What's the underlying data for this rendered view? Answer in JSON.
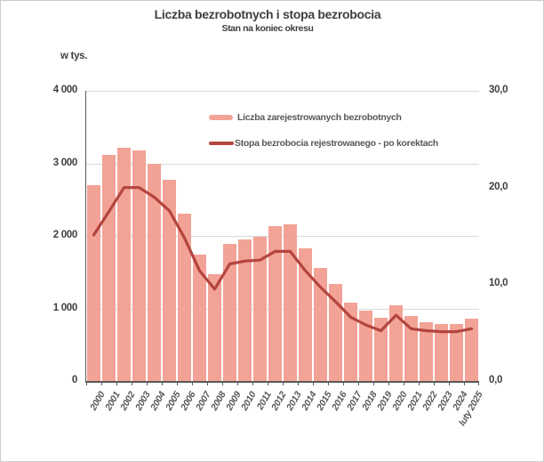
{
  "colors": {
    "bar_fill": "#F3A296",
    "line": "#B3453E",
    "grid": "#D9D9D9",
    "axis": "#5A5A5A",
    "text": "#404040",
    "muted_text": "#595959",
    "frame": "#C9CCCE"
  },
  "chart_data": {
    "type": "combo-bar-line",
    "title": "Liczba bezrobotnych i stopa bezrobocia",
    "subtitle": "Stan na koniec okresu",
    "legend_position": "inside-top-center",
    "grid": true,
    "categories": [
      "2000",
      "2001",
      "2002",
      "2003",
      "2004",
      "2005",
      "2006",
      "2007",
      "2008",
      "2009",
      "2010",
      "2011",
      "2012",
      "2013",
      "2014",
      "2015",
      "2016",
      "2017",
      "2018",
      "2019",
      "2020",
      "2021",
      "2022",
      "2023",
      "2024",
      "luty 2025"
    ],
    "series": [
      {
        "name": "Liczba zarejestrowanych bezrobotnych",
        "type": "bar",
        "axis": "left",
        "unit": "tys.",
        "color": "#F3A296",
        "values": [
          2703,
          3115,
          3217,
          3176,
          3000,
          2773,
          2309,
          1747,
          1474,
          1893,
          1955,
          1983,
          2137,
          2158,
          1825,
          1563,
          1335,
          1082,
          969,
          866,
          1046,
          895,
          812,
          788,
          787,
          854
        ]
      },
      {
        "name": "Stopa bezrobocia rejestrowanego - po korektach",
        "type": "line",
        "axis": "right",
        "unit": "%",
        "color": "#B3453E",
        "values": [
          15.1,
          17.5,
          20.0,
          20.0,
          19.0,
          17.6,
          14.8,
          11.4,
          9.5,
          12.1,
          12.4,
          12.5,
          13.4,
          13.4,
          11.4,
          9.7,
          8.2,
          6.6,
          5.8,
          5.2,
          6.8,
          5.4,
          5.2,
          5.1,
          5.1,
          5.4
        ]
      }
    ],
    "left_axis": {
      "label": "w tys.",
      "min": 0,
      "max": 4000,
      "ticks": [
        {
          "value": 4000,
          "label": "4 000"
        },
        {
          "value": 3000,
          "label": "3 000"
        },
        {
          "value": 2000,
          "label": "2 000"
        },
        {
          "value": 1000,
          "label": "1 000"
        },
        {
          "value": 0,
          "label": "0"
        }
      ]
    },
    "right_axis": {
      "min": 0,
      "max": 30,
      "ticks": [
        {
          "value": 30,
          "label": "30,0"
        },
        {
          "value": 20,
          "label": "20,0"
        },
        {
          "value": 10,
          "label": "10,0"
        },
        {
          "value": 0,
          "label": "0,0"
        }
      ]
    }
  }
}
